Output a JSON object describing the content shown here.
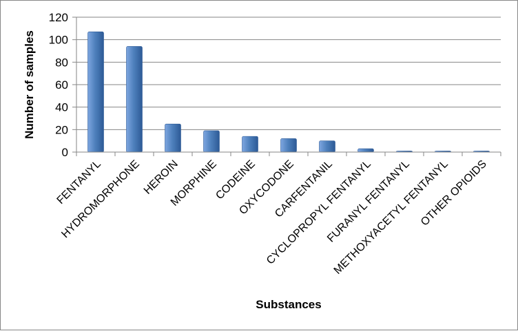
{
  "chart_data": {
    "type": "bar",
    "title": "",
    "xlabel": "Substances",
    "ylabel": "Number of samples",
    "ylim": [
      0,
      120
    ],
    "yticks": [
      0,
      20,
      40,
      60,
      80,
      100,
      120
    ],
    "grid": true,
    "legend": "none",
    "categories": [
      "FENTANYL",
      "HYDROMORPHONE",
      "HEROIN",
      "MORPHINE",
      "CODEINE",
      "OXYCODONE",
      "CARFENTANIL",
      "CYCLOPROPYL FENTANYL",
      "FURANYL FENTANYL",
      "METHOXYACETYL FENTANYL",
      "OTHER OPIOIDS"
    ],
    "values": [
      107,
      94,
      25,
      19,
      14,
      12,
      10,
      3,
      1,
      1,
      1
    ],
    "colors": {
      "bar_light": "#7ea6e0",
      "bar_mid": "#4f81bd",
      "bar_dark": "#2d5a96",
      "grid": "#868686",
      "axis": "#868686"
    }
  }
}
